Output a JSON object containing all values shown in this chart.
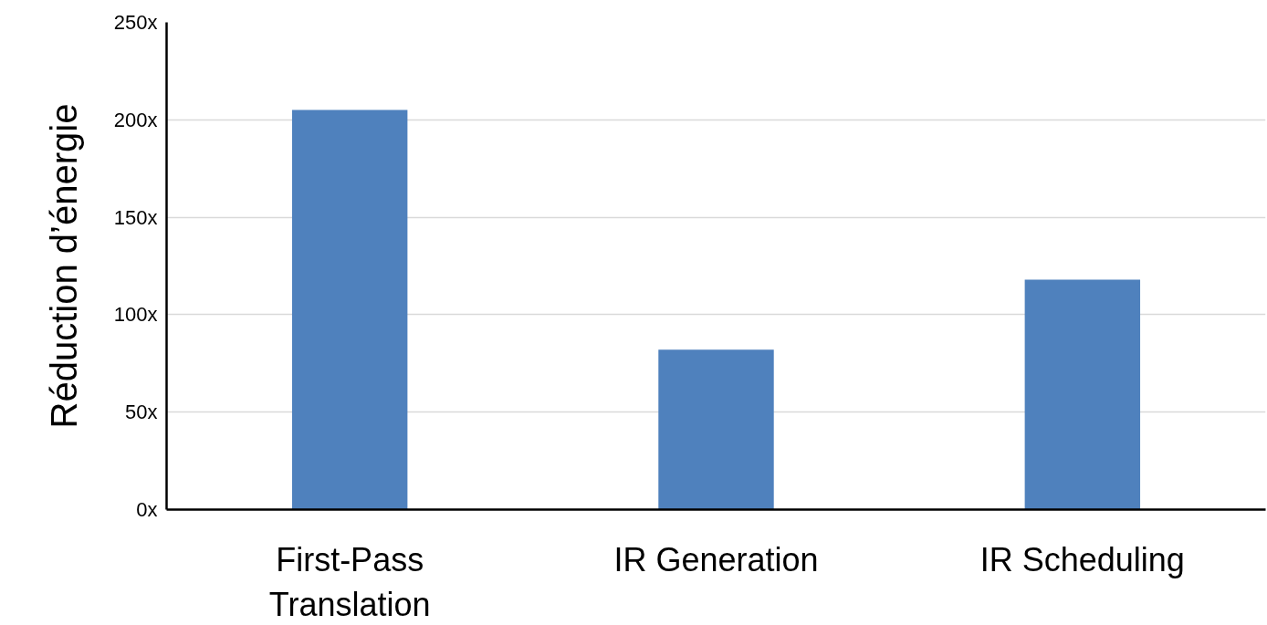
{
  "chart_data": {
    "type": "bar",
    "ylabel": "Réduction d’énergie",
    "categories": [
      "First-Pass Translation",
      "IR Generation",
      "IR Scheduling"
    ],
    "values": [
      205,
      82,
      118
    ],
    "color": "#4f81bd",
    "ylim": [
      0,
      250
    ],
    "yticks": [
      {
        "value": 0,
        "label": "0x"
      },
      {
        "value": 50,
        "label": "50x"
      },
      {
        "value": 100,
        "label": "100x"
      },
      {
        "value": 150,
        "label": "150x"
      },
      {
        "value": 200,
        "label": "200x"
      },
      {
        "value": 250,
        "label": "250x"
      }
    ],
    "grid": "y"
  }
}
